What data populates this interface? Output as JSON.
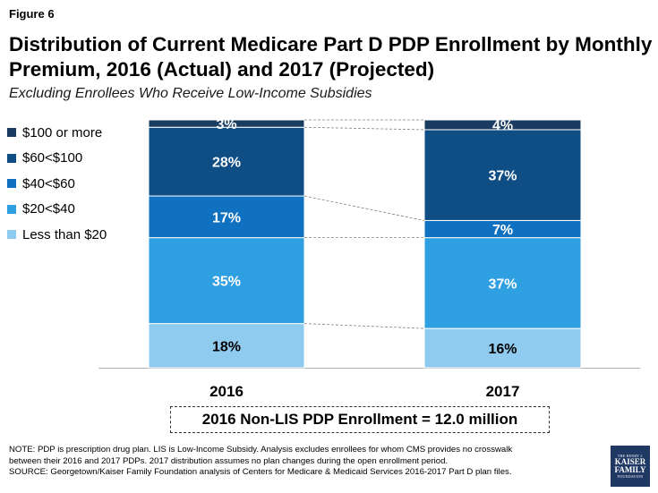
{
  "figure_label": "Figure 6",
  "title": "Distribution of Current Medicare Part D PDP Enrollment by Monthly Premium, 2016 (Actual) and 2017 (Projected)",
  "subtitle": "Excluding Enrollees Who Receive Low-Income Subsidies",
  "enrollment_box": "2016 Non-LIS PDP Enrollment = 12.0 million",
  "note_lines": [
    "NOTE: PDP is prescription drug plan. LIS is Low-Income Subsidy. Analysis excludes enrollees for whom CMS provides no crosswalk",
    "between their 2016 and 2017 PDPs. 2017 distribution assumes no plan changes during the open enrollment period.",
    "SOURCE: Georgetown/Kaiser Family Foundation analysis of Centers for Medicare & Medicaid Services 2016-2017 Part D plan files."
  ],
  "logo": {
    "line1": "THE HENRY J.",
    "line2": "KAISER",
    "line3": "FAMILY",
    "line4": "FOUNDATION"
  },
  "chart_data": {
    "type": "bar",
    "stacked": true,
    "percent": true,
    "categories": [
      "2016",
      "2017"
    ],
    "series": [
      {
        "name": "Less than $20",
        "values": [
          18,
          16
        ],
        "labels": [
          "18%",
          "16%"
        ],
        "color": "#8fcbee"
      },
      {
        "name": "$20<$40",
        "values": [
          35,
          37
        ],
        "labels": [
          "35%",
          "37%"
        ],
        "color": "#2e9fe0"
      },
      {
        "name": "$40<$60",
        "values": [
          17,
          7
        ],
        "labels": [
          "17%",
          "7%"
        ],
        "color": "#0f71c0"
      },
      {
        "name": "$60<$100",
        "values": [
          28,
          37
        ],
        "labels": [
          "28%",
          "37%"
        ],
        "color": "#0e4e84"
      },
      {
        "name": "$100 or more",
        "values": [
          3,
          4
        ],
        "labels": [
          "3%",
          "4%"
        ],
        "color": "#1a3c61"
      }
    ],
    "legend_order": [
      "$100 or more",
      "$60<$100",
      "$40<$60",
      "$20<$40",
      "Less than $20"
    ],
    "ylim": [
      0,
      101
    ],
    "title": "",
    "xlabel": "",
    "ylabel": ""
  }
}
